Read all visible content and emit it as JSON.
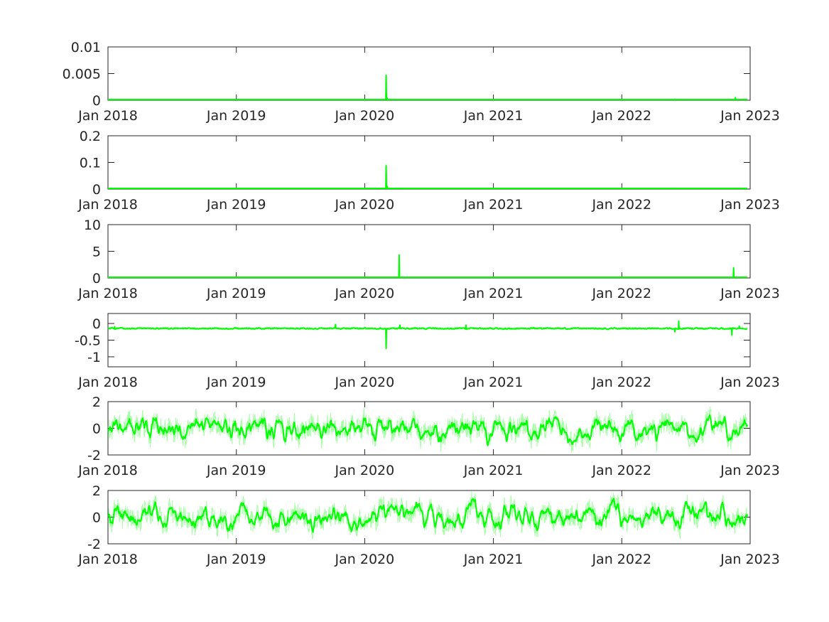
{
  "chart_data": [
    {
      "type": "line",
      "xlim": [
        "2018-01-01",
        "2023-01-01"
      ],
      "x_ticks": [
        "Jan 2018",
        "Jan 2019",
        "Jan 2020",
        "Jan 2021",
        "Jan 2022",
        "Jan 2023"
      ],
      "ylim": [
        0,
        0.01
      ],
      "y_ticks": [
        0,
        0.005,
        0.01
      ],
      "y_tick_labels": [
        "0",
        "0.005",
        "0.01"
      ],
      "grid": false,
      "color": "#00ff00",
      "kind": "spike",
      "baseline": 0.0001,
      "events": [
        {
          "date": "2020-03-02",
          "value": 0.0047
        },
        {
          "date": "2020-03-05",
          "value": 0.0004
        },
        {
          "date": "2022-06-01",
          "value": 0.0002
        },
        {
          "date": "2022-11-20",
          "value": 0.0005
        }
      ]
    },
    {
      "type": "line",
      "xlim": [
        "2018-01-01",
        "2023-01-01"
      ],
      "x_ticks": [
        "Jan 2018",
        "Jan 2019",
        "Jan 2020",
        "Jan 2021",
        "Jan 2022",
        "Jan 2023"
      ],
      "ylim": [
        0,
        0.2
      ],
      "y_ticks": [
        0,
        0.1,
        0.2
      ],
      "y_tick_labels": [
        "0",
        "0.1",
        "0.2"
      ],
      "grid": false,
      "color": "#00ff00",
      "kind": "spike",
      "baseline": 0.001,
      "events": [
        {
          "date": "2020-03-02",
          "value": 0.088
        },
        {
          "date": "2020-03-05",
          "value": 0.01
        },
        {
          "date": "2022-06-01",
          "value": 0.003
        }
      ]
    },
    {
      "type": "line",
      "xlim": [
        "2018-01-01",
        "2023-01-01"
      ],
      "x_ticks": [
        "Jan 2018",
        "Jan 2019",
        "Jan 2020",
        "Jan 2021",
        "Jan 2022",
        "Jan 2023"
      ],
      "ylim": [
        0,
        10
      ],
      "y_ticks": [
        0,
        5,
        10
      ],
      "y_tick_labels": [
        "0",
        "5",
        "10"
      ],
      "grid": false,
      "color": "#00ff00",
      "kind": "spike",
      "baseline": 0.05,
      "events": [
        {
          "date": "2020-04-08",
          "value": 4.3
        },
        {
          "date": "2022-11-15",
          "value": 1.9
        }
      ]
    },
    {
      "type": "line",
      "xlim": [
        "2018-01-01",
        "2023-01-01"
      ],
      "x_ticks": [
        "Jan 2018",
        "Jan 2019",
        "Jan 2020",
        "Jan 2021",
        "Jan 2022",
        "Jan 2023"
      ],
      "ylim": [
        -1.3,
        0.3
      ],
      "y_ticks": [
        -1,
        -0.5,
        0
      ],
      "y_tick_labels": [
        "-1",
        "-0.5",
        "0"
      ],
      "grid": false,
      "color": "#00ff00",
      "kind": "noisy",
      "base": -0.15,
      "amplitude": 0.02,
      "band": 0.03,
      "events": [
        {
          "date": "2018-01-20",
          "value": -0.1
        },
        {
          "date": "2019-10-10",
          "value": -0.03
        },
        {
          "date": "2020-03-02",
          "value": -0.75
        },
        {
          "date": "2020-04-10",
          "value": -0.05
        },
        {
          "date": "2020-10-15",
          "value": -0.05
        },
        {
          "date": "2022-06-12",
          "value": 0.07
        },
        {
          "date": "2022-06-01",
          "value": -0.25
        },
        {
          "date": "2022-11-10",
          "value": -0.35
        },
        {
          "date": "2022-12-01",
          "value": -0.08
        }
      ]
    },
    {
      "type": "line",
      "xlim": [
        "2018-01-01",
        "2023-01-01"
      ],
      "x_ticks": [
        "Jan 2018",
        "Jan 2019",
        "Jan 2020",
        "Jan 2021",
        "Jan 2022",
        "Jan 2023"
      ],
      "ylim": [
        -2,
        2
      ],
      "y_ticks": [
        -2,
        0,
        2
      ],
      "y_tick_labels": [
        "-2",
        "0",
        "2"
      ],
      "grid": false,
      "color": "#00ff00",
      "kind": "oscillating",
      "base": 0,
      "amplitude": 0.55,
      "band": 0.7,
      "events": []
    },
    {
      "type": "line",
      "xlim": [
        "2018-01-01",
        "2023-01-01"
      ],
      "x_ticks": [
        "Jan 2018",
        "Jan 2019",
        "Jan 2020",
        "Jan 2021",
        "Jan 2022",
        "Jan 2023"
      ],
      "ylim": [
        -2,
        2
      ],
      "y_ticks": [
        -2,
        0,
        2
      ],
      "y_tick_labels": [
        "-2",
        "0",
        "2"
      ],
      "grid": false,
      "color": "#00ff00",
      "kind": "oscillating",
      "base": 0,
      "amplitude": 0.55,
      "band": 0.7,
      "events": []
    }
  ]
}
